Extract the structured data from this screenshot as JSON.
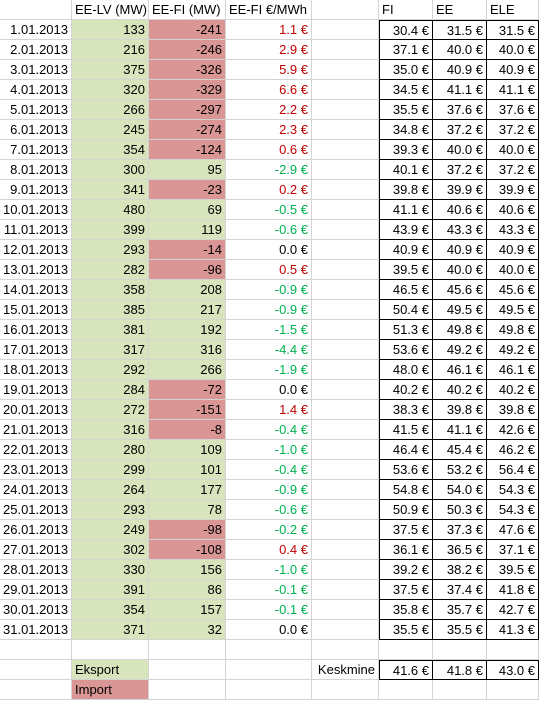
{
  "headers": {
    "ee_lv": "EE-LV (MW)",
    "ee_fi": "EE-FI (MW)",
    "price_diff": "EE-FI €/MWh",
    "fi": "FI",
    "ee": "EE",
    "ele": "ELE"
  },
  "rows": [
    {
      "date": "1.01.2013",
      "ee_lv": "133",
      "ee_fi": "-241",
      "diff": "1.1 €",
      "fi": "30.4 €",
      "ee": "31.5 €",
      "ele": "31.5 €"
    },
    {
      "date": "2.01.2013",
      "ee_lv": "216",
      "ee_fi": "-246",
      "diff": "2.9 €",
      "fi": "37.1 €",
      "ee": "40.0 €",
      "ele": "40.0 €"
    },
    {
      "date": "3.01.2013",
      "ee_lv": "375",
      "ee_fi": "-326",
      "diff": "5.9 €",
      "fi": "35.0 €",
      "ee": "40.9 €",
      "ele": "40.9 €"
    },
    {
      "date": "4.01.2013",
      "ee_lv": "320",
      "ee_fi": "-329",
      "diff": "6.6 €",
      "fi": "34.5 €",
      "ee": "41.1 €",
      "ele": "41.1 €"
    },
    {
      "date": "5.01.2013",
      "ee_lv": "266",
      "ee_fi": "-297",
      "diff": "2.2 €",
      "fi": "35.5 €",
      "ee": "37.6 €",
      "ele": "37.6 €"
    },
    {
      "date": "6.01.2013",
      "ee_lv": "245",
      "ee_fi": "-274",
      "diff": "2.3 €",
      "fi": "34.8 €",
      "ee": "37.2 €",
      "ele": "37.2 €"
    },
    {
      "date": "7.01.2013",
      "ee_lv": "354",
      "ee_fi": "-124",
      "diff": "0.6 €",
      "fi": "39.3 €",
      "ee": "40.0 €",
      "ele": "40.0 €"
    },
    {
      "date": "8.01.2013",
      "ee_lv": "300",
      "ee_fi": "95",
      "diff": "-2.9 €",
      "fi": "40.1 €",
      "ee": "37.2 €",
      "ele": "37.2 €"
    },
    {
      "date": "9.01.2013",
      "ee_lv": "341",
      "ee_fi": "-23",
      "diff": "0.2 €",
      "fi": "39.8 €",
      "ee": "39.9 €",
      "ele": "39.9 €"
    },
    {
      "date": "10.01.2013",
      "ee_lv": "480",
      "ee_fi": "69",
      "diff": "-0.5 €",
      "fi": "41.1 €",
      "ee": "40.6 €",
      "ele": "40.6 €"
    },
    {
      "date": "11.01.2013",
      "ee_lv": "399",
      "ee_fi": "119",
      "diff": "-0.6 €",
      "fi": "43.9 €",
      "ee": "43.3 €",
      "ele": "43.3 €"
    },
    {
      "date": "12.01.2013",
      "ee_lv": "293",
      "ee_fi": "-14",
      "diff": "0.0 €",
      "fi": "40.9 €",
      "ee": "40.9 €",
      "ele": "40.9 €"
    },
    {
      "date": "13.01.2013",
      "ee_lv": "282",
      "ee_fi": "-96",
      "diff": "0.5 €",
      "fi": "39.5 €",
      "ee": "40.0 €",
      "ele": "40.0 €"
    },
    {
      "date": "14.01.2013",
      "ee_lv": "358",
      "ee_fi": "208",
      "diff": "-0.9 €",
      "fi": "46.5 €",
      "ee": "45.6 €",
      "ele": "45.6 €"
    },
    {
      "date": "15.01.2013",
      "ee_lv": "385",
      "ee_fi": "217",
      "diff": "-0.9 €",
      "fi": "50.4 €",
      "ee": "49.5 €",
      "ele": "49.5 €"
    },
    {
      "date": "16.01.2013",
      "ee_lv": "381",
      "ee_fi": "192",
      "diff": "-1.5 €",
      "fi": "51.3 €",
      "ee": "49.8 €",
      "ele": "49.8 €"
    },
    {
      "date": "17.01.2013",
      "ee_lv": "317",
      "ee_fi": "316",
      "diff": "-4.4 €",
      "fi": "53.6 €",
      "ee": "49.2 €",
      "ele": "49.2 €"
    },
    {
      "date": "18.01.2013",
      "ee_lv": "292",
      "ee_fi": "266",
      "diff": "-1.9 €",
      "fi": "48.0 €",
      "ee": "46.1 €",
      "ele": "46.1 €"
    },
    {
      "date": "19.01.2013",
      "ee_lv": "284",
      "ee_fi": "-72",
      "diff": "0.0 €",
      "fi": "40.2 €",
      "ee": "40.2 €",
      "ele": "40.2 €"
    },
    {
      "date": "20.01.2013",
      "ee_lv": "272",
      "ee_fi": "-151",
      "diff": "1.4 €",
      "fi": "38.3 €",
      "ee": "39.8 €",
      "ele": "39.8 €"
    },
    {
      "date": "21.01.2013",
      "ee_lv": "316",
      "ee_fi": "-8",
      "diff": "-0.4 €",
      "fi": "41.5 €",
      "ee": "41.1 €",
      "ele": "42.6 €"
    },
    {
      "date": "22.01.2013",
      "ee_lv": "280",
      "ee_fi": "109",
      "diff": "-1.0 €",
      "fi": "46.4 €",
      "ee": "45.4 €",
      "ele": "46.2 €"
    },
    {
      "date": "23.01.2013",
      "ee_lv": "299",
      "ee_fi": "101",
      "diff": "-0.4 €",
      "fi": "53.6 €",
      "ee": "53.2 €",
      "ele": "56.4 €"
    },
    {
      "date": "24.01.2013",
      "ee_lv": "264",
      "ee_fi": "177",
      "diff": "-0.9 €",
      "fi": "54.8 €",
      "ee": "54.0 €",
      "ele": "54.3 €"
    },
    {
      "date": "25.01.2013",
      "ee_lv": "293",
      "ee_fi": "78",
      "diff": "-0.6 €",
      "fi": "50.9 €",
      "ee": "50.3 €",
      "ele": "54.3 €"
    },
    {
      "date": "26.01.2013",
      "ee_lv": "249",
      "ee_fi": "-98",
      "diff": "-0.2 €",
      "fi": "37.5 €",
      "ee": "37.3 €",
      "ele": "47.6 €"
    },
    {
      "date": "27.01.2013",
      "ee_lv": "302",
      "ee_fi": "-108",
      "diff": "0.4 €",
      "fi": "36.1 €",
      "ee": "36.5 €",
      "ele": "37.1 €"
    },
    {
      "date": "28.01.2013",
      "ee_lv": "330",
      "ee_fi": "156",
      "diff": "-1.0 €",
      "fi": "39.2 €",
      "ee": "38.2 €",
      "ele": "39.5 €"
    },
    {
      "date": "29.01.2013",
      "ee_lv": "391",
      "ee_fi": "86",
      "diff": "-0.1 €",
      "fi": "37.5 €",
      "ee": "37.4 €",
      "ele": "41.8 €"
    },
    {
      "date": "30.01.2013",
      "ee_lv": "354",
      "ee_fi": "157",
      "diff": "-0.1 €",
      "fi": "35.8 €",
      "ee": "35.7 €",
      "ele": "42.7 €"
    },
    {
      "date": "31.01.2013",
      "ee_lv": "371",
      "ee_fi": "32",
      "diff": "0.0 €",
      "fi": "35.5 €",
      "ee": "35.5 €",
      "ele": "41.3 €"
    }
  ],
  "legend": {
    "export": "Eksport",
    "import": "Import"
  },
  "summary": {
    "label": "Keskmine",
    "fi": "41.6 €",
    "ee": "41.8 €",
    "ele": "43.0 €"
  },
  "colors": {
    "export_fill": "#d8e4bc",
    "import_fill": "#da9694",
    "positive_diff": "#c00000",
    "negative_diff": "#00b050"
  }
}
